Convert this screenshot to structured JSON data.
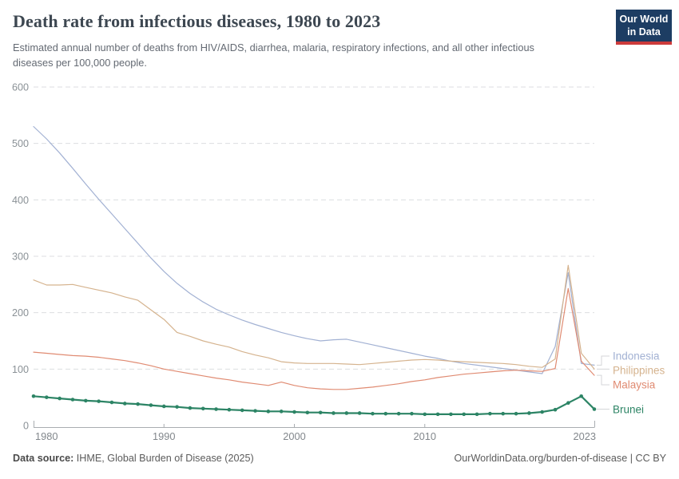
{
  "header": {
    "title": "Death rate from infectious diseases, 1980 to 2023",
    "subtitle": "Estimated annual number of deaths from HIV/AIDS, diarrhea, malaria, respiratory infections, and all other infectious diseases per 100,000 people.",
    "logo_line1": "Our World",
    "logo_line2": "in Data"
  },
  "chart_data": {
    "type": "line",
    "title": "Death rate from infectious diseases, 1980 to 2023",
    "xlabel": "",
    "ylabel": "Deaths per 100,000 people",
    "ylim": [
      0,
      600
    ],
    "yticks": [
      0,
      100,
      200,
      300,
      400,
      500,
      600
    ],
    "xticks": [
      1980,
      1990,
      2000,
      2010,
      2023
    ],
    "grid": "dashed-horizontal",
    "legend_position": "right",
    "x": [
      1980,
      1981,
      1982,
      1983,
      1984,
      1985,
      1986,
      1987,
      1988,
      1989,
      1990,
      1991,
      1992,
      1993,
      1994,
      1995,
      1996,
      1997,
      1998,
      1999,
      2000,
      2001,
      2002,
      2003,
      2004,
      2005,
      2006,
      2007,
      2008,
      2009,
      2010,
      2011,
      2012,
      2013,
      2014,
      2015,
      2016,
      2017,
      2018,
      2019,
      2020,
      2021,
      2022,
      2023
    ],
    "series": [
      {
        "name": "Indonesia",
        "color": "#a2b1d3",
        "markers": false,
        "highlighted": false,
        "values": [
          530,
          508,
          483,
          456,
          428,
          401,
          375,
          349,
          323,
          297,
          273,
          252,
          234,
          219,
          206,
          196,
          187,
          179,
          172,
          165,
          159,
          154,
          150,
          152,
          153,
          148,
          143,
          138,
          133,
          128,
          123,
          119,
          114,
          110,
          107,
          104,
          101,
          98,
          95,
          92,
          140,
          271,
          110,
          107
        ]
      },
      {
        "name": "Philippines",
        "color": "#d5b38e",
        "markers": false,
        "highlighted": false,
        "values": [
          258,
          249,
          249,
          250,
          245,
          240,
          235,
          228,
          222,
          205,
          188,
          165,
          158,
          150,
          144,
          139,
          131,
          125,
          120,
          113,
          111,
          110,
          110,
          110,
          109,
          108,
          110,
          112,
          114,
          116,
          117,
          116,
          114,
          113,
          112,
          111,
          110,
          108,
          105,
          103,
          118,
          284,
          128,
          100
        ]
      },
      {
        "name": "Malaysia",
        "color": "#e08b72",
        "markers": false,
        "highlighted": false,
        "values": [
          130,
          128,
          126,
          124,
          123,
          121,
          118,
          115,
          111,
          106,
          100,
          96,
          92,
          88,
          84,
          81,
          77,
          74,
          71,
          77,
          71,
          67,
          65,
          64,
          64,
          66,
          68,
          71,
          74,
          78,
          81,
          85,
          88,
          91,
          93,
          95,
          97,
          98,
          97,
          96,
          101,
          243,
          114,
          89
        ]
      },
      {
        "name": "Brunei",
        "color": "#2c8465",
        "markers": true,
        "highlighted": true,
        "values": [
          52,
          50,
          48,
          46,
          44,
          43,
          41,
          39,
          38,
          36,
          34,
          33,
          31,
          30,
          29,
          28,
          27,
          26,
          25,
          25,
          24,
          23,
          23,
          22,
          22,
          22,
          21,
          21,
          21,
          21,
          20,
          20,
          20,
          20,
          20,
          21,
          21,
          21,
          22,
          24,
          28,
          40,
          52,
          29
        ]
      }
    ]
  },
  "footer": {
    "datasource_label": "Data source:",
    "datasource_text": " IHME, Global Burden of Disease (2025)",
    "attribution": "OurWorldinData.org/burden-of-disease | CC BY"
  }
}
